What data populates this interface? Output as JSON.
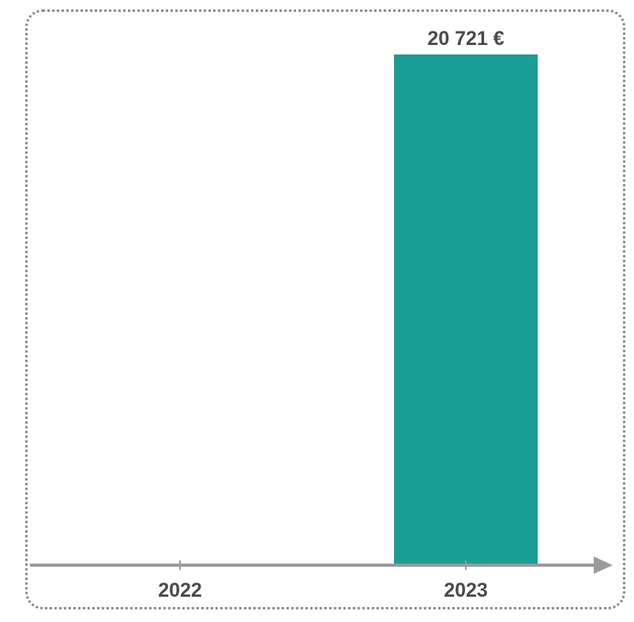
{
  "chart_data": {
    "type": "bar",
    "categories": [
      "2022",
      "2023"
    ],
    "values": [
      null,
      20721
    ],
    "data_labels": [
      "",
      "20 721 €"
    ],
    "title": "",
    "xlabel": "",
    "ylabel": "",
    "ylim": [
      0,
      20721
    ],
    "grid": false,
    "legend": "none",
    "colors": {
      "bar": "#1a9e93",
      "axis": "#9a9a9a",
      "text": "#4a4a4a",
      "frame": "#8a8a8a"
    }
  }
}
